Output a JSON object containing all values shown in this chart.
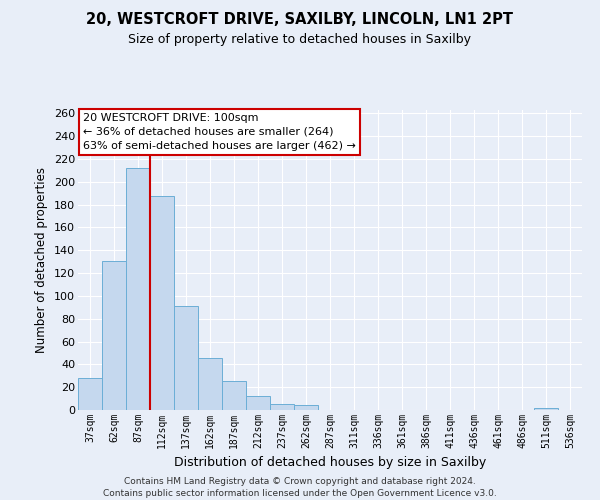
{
  "title1": "20, WESTCROFT DRIVE, SAXILBY, LINCOLN, LN1 2PT",
  "title2": "Size of property relative to detached houses in Saxilby",
  "xlabel": "Distribution of detached houses by size in Saxilby",
  "ylabel": "Number of detached properties",
  "bar_labels": [
    "37sqm",
    "62sqm",
    "87sqm",
    "112sqm",
    "137sqm",
    "162sqm",
    "187sqm",
    "212sqm",
    "237sqm",
    "262sqm",
    "287sqm",
    "311sqm",
    "336sqm",
    "361sqm",
    "386sqm",
    "411sqm",
    "436sqm",
    "461sqm",
    "486sqm",
    "511sqm",
    "536sqm"
  ],
  "bar_heights": [
    28,
    131,
    212,
    188,
    91,
    46,
    25,
    12,
    5,
    4,
    0,
    0,
    0,
    0,
    0,
    0,
    0,
    0,
    0,
    2,
    0
  ],
  "bar_color": "#c5d8ee",
  "bar_edge_color": "#6baed6",
  "vline_color": "#cc0000",
  "annotation_title": "20 WESTCROFT DRIVE: 100sqm",
  "annotation_line1": "← 36% of detached houses are smaller (264)",
  "annotation_line2": "63% of semi-detached houses are larger (462) →",
  "ylim": [
    0,
    263
  ],
  "yticks": [
    0,
    20,
    40,
    60,
    80,
    100,
    120,
    140,
    160,
    180,
    200,
    220,
    240,
    260
  ],
  "footer1": "Contains HM Land Registry data © Crown copyright and database right 2024.",
  "footer2": "Contains public sector information licensed under the Open Government Licence v3.0.",
  "bg_color": "#e8eef8"
}
